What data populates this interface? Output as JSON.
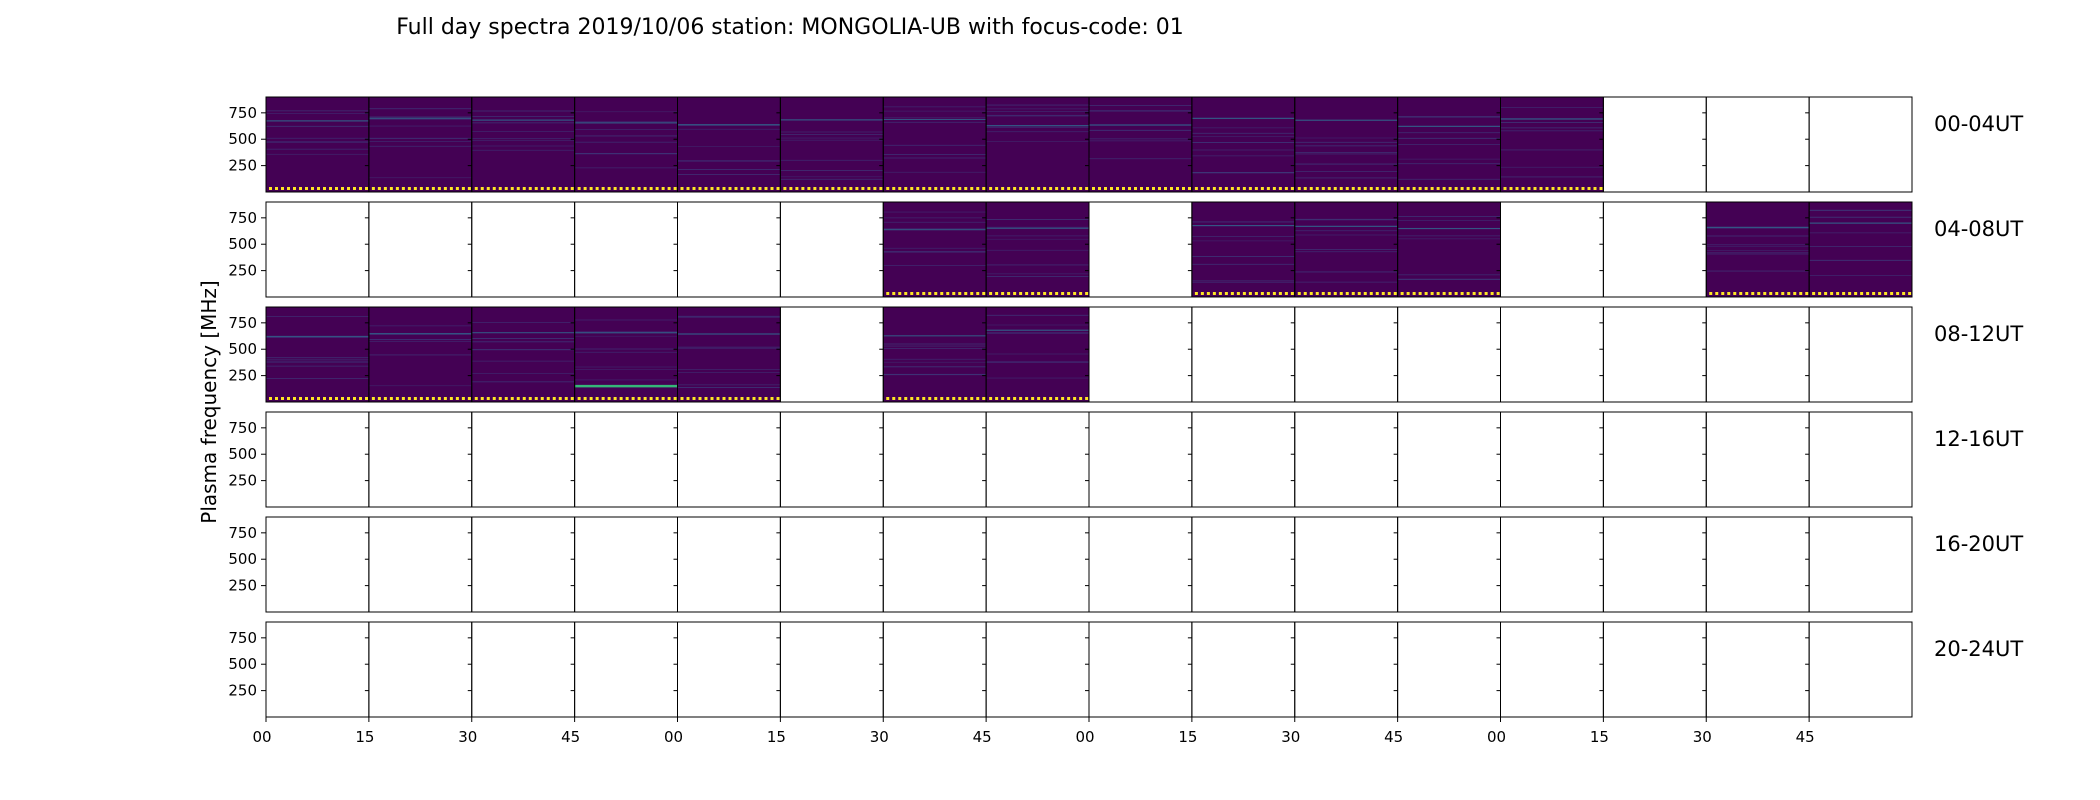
{
  "chart_data": {
    "type": "heatmap",
    "title": "Full day spectra 2019/10/06 station: MONGOLIA-UB with focus-code: 01",
    "ylabel": "Plasma frequency [MHz]",
    "xlabel": "",
    "yticks": [
      "750",
      "500",
      "250"
    ],
    "xticks": [
      "00",
      "15",
      "30",
      "45",
      "00",
      "15",
      "30",
      "45",
      "00",
      "15",
      "30",
      "45",
      "00",
      "15",
      "30",
      "45"
    ],
    "ylim": [
      0,
      900
    ],
    "grid": false,
    "colors": {
      "background": "#440154",
      "line": "#35b779",
      "dots": "#fde725"
    },
    "rows": [
      {
        "label": "00-04UT",
        "filled": [
          1,
          1,
          1,
          1,
          1,
          1,
          1,
          1,
          1,
          1,
          1,
          1,
          1,
          0,
          0,
          0
        ]
      },
      {
        "label": "04-08UT",
        "filled": [
          0,
          0,
          0,
          0,
          0,
          0,
          1,
          1,
          0,
          1,
          1,
          1,
          0,
          0,
          1,
          1
        ]
      },
      {
        "label": "08-12UT",
        "filled": [
          1,
          1,
          1,
          1,
          1,
          0,
          1,
          1,
          0,
          0,
          0,
          0,
          0,
          0,
          0,
          0
        ]
      },
      {
        "label": "12-16UT",
        "filled": [
          0,
          0,
          0,
          0,
          0,
          0,
          0,
          0,
          0,
          0,
          0,
          0,
          0,
          0,
          0,
          0
        ]
      },
      {
        "label": "16-20UT",
        "filled": [
          0,
          0,
          0,
          0,
          0,
          0,
          0,
          0,
          0,
          0,
          0,
          0,
          0,
          0,
          0,
          0
        ]
      },
      {
        "label": "20-24UT",
        "filled": [
          0,
          0,
          0,
          0,
          0,
          0,
          0,
          0,
          0,
          0,
          0,
          0,
          0,
          0,
          0,
          0
        ]
      }
    ]
  }
}
